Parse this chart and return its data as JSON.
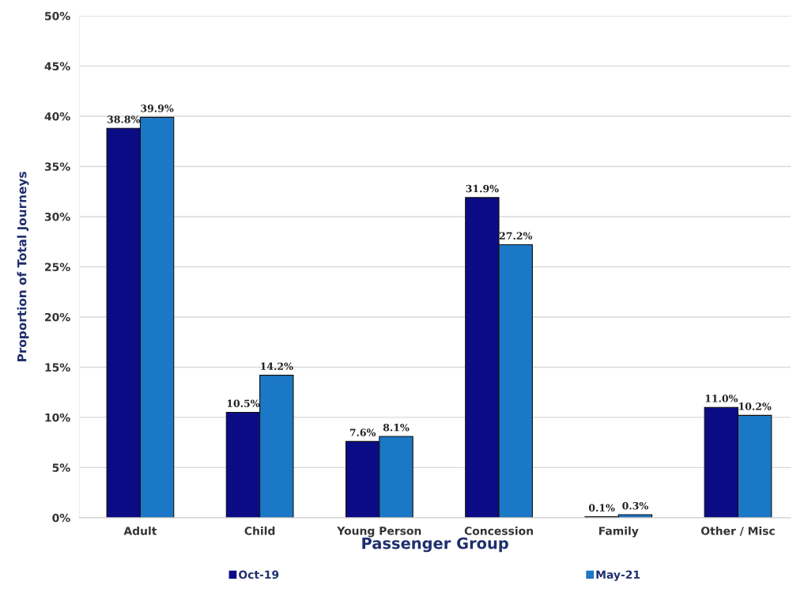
{
  "chart_data": {
    "type": "bar",
    "xlabel": "Passenger Group",
    "ylabel": "Proportion of Total Journeys",
    "categories": [
      "Adult",
      "Child",
      "Young Person",
      "Concession",
      "Family",
      "Other / Misc"
    ],
    "series": [
      {
        "name": "Oct-19",
        "color": "#0b0b86",
        "values": [
          38.8,
          10.5,
          7.6,
          31.9,
          0.1,
          11.0
        ],
        "value_labels": [
          "38.8%",
          "10.5%",
          "7.6%",
          "31.9%",
          "0.1%",
          "11.0%"
        ]
      },
      {
        "name": "May-21",
        "color": "#1b78c6",
        "values": [
          39.9,
          14.2,
          8.1,
          27.2,
          0.3,
          10.2
        ],
        "value_labels": [
          "39.9%",
          "14.2%",
          "8.1%",
          "27.2%",
          "0.3%",
          "10.2%"
        ]
      }
    ],
    "ylim": [
      0,
      50
    ],
    "yticks": [
      {
        "value": 0,
        "label": "0%"
      },
      {
        "value": 5,
        "label": "5%"
      },
      {
        "value": 10,
        "label": "10%"
      },
      {
        "value": 15,
        "label": "15%"
      },
      {
        "value": 20,
        "label": "20%"
      },
      {
        "value": 25,
        "label": "25%"
      },
      {
        "value": 30,
        "label": "30%"
      },
      {
        "value": 35,
        "label": "35%"
      },
      {
        "value": 40,
        "label": "40%"
      },
      {
        "value": 45,
        "label": "45%"
      },
      {
        "value": 50,
        "label": "50%"
      }
    ],
    "grid": "y",
    "legend": "bottom"
  }
}
